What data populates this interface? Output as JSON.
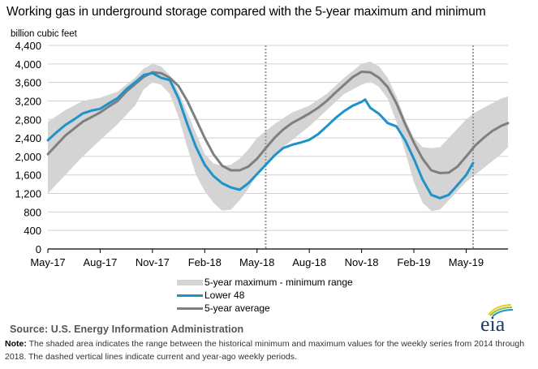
{
  "chart_data": {
    "type": "area",
    "title": "Working gas in underground storage compared with the 5-year maximum and minimum",
    "ylabel": "billion cubic feet",
    "xlabel": "",
    "ylim": [
      0,
      4400
    ],
    "yticks": [
      0,
      400,
      800,
      1200,
      1600,
      2000,
      2400,
      2800,
      3200,
      3600,
      4000,
      4400
    ],
    "ytick_labels": [
      "0",
      "400",
      "800",
      "1,200",
      "1,600",
      "2,000",
      "2,400",
      "2,800",
      "3,200",
      "3,600",
      "4,000",
      "4,400"
    ],
    "x_unit": "months since May-17",
    "xlim": [
      0,
      26.4
    ],
    "xticks": [
      0,
      3,
      6,
      9,
      12,
      15,
      18,
      21,
      24
    ],
    "xtick_labels": [
      "May-17",
      "Aug-17",
      "Nov-17",
      "Feb-18",
      "May-18",
      "Aug-18",
      "Nov-18",
      "Feb-19",
      "May-19"
    ],
    "grid": true,
    "dashed_vlines": [
      12.5,
      24.4
    ],
    "legend_position": "bottom",
    "series": [
      {
        "name": "5-year maximum - minimum range",
        "kind": "band",
        "color": "#d4d4d4",
        "x": [
          0,
          1,
          2,
          3,
          4,
          5,
          5.5,
          6,
          6.5,
          7,
          7.5,
          8,
          8.5,
          9,
          9.5,
          10,
          10.5,
          11,
          11.5,
          12,
          12.5,
          13,
          14,
          15,
          16,
          17,
          18,
          18.5,
          19,
          19.5,
          20,
          20.5,
          21,
          21.5,
          22,
          22.5,
          23,
          23.5,
          24,
          24.5,
          25,
          26,
          26.4
        ],
        "max": [
          2750,
          3000,
          3200,
          3270,
          3400,
          3700,
          3900,
          4000,
          3950,
          3750,
          3400,
          2950,
          2500,
          2050,
          1850,
          1800,
          1820,
          1950,
          2150,
          2400,
          2550,
          2700,
          2950,
          3100,
          3350,
          3700,
          4000,
          4050,
          3950,
          3700,
          3300,
          2800,
          2400,
          2200,
          2180,
          2200,
          2400,
          2600,
          2800,
          2950,
          3050,
          3250,
          3300
        ],
        "min": [
          1200,
          1600,
          2000,
          2350,
          2700,
          3100,
          3450,
          3600,
          3550,
          3350,
          2850,
          2200,
          1600,
          1250,
          1000,
          830,
          850,
          1050,
          1300,
          1600,
          1850,
          2050,
          2350,
          2650,
          3000,
          3350,
          3550,
          3620,
          3500,
          3250,
          2750,
          2100,
          1450,
          1000,
          820,
          850,
          1050,
          1250,
          1450,
          1600,
          1750,
          2050,
          2200
        ]
      },
      {
        "name": "Lower 48",
        "kind": "line",
        "color": "#1f92cc",
        "x": [
          0,
          0.5,
          1,
          1.5,
          2,
          2.5,
          3,
          3.5,
          4,
          4.5,
          5,
          5.5,
          6,
          6.5,
          7,
          7.5,
          8,
          8.5,
          9,
          9.5,
          10,
          10.5,
          11,
          11.5,
          12,
          12.5,
          13,
          13.5,
          14,
          14.5,
          15,
          15.5,
          16,
          16.5,
          17,
          17.5,
          18,
          18.2,
          18.5,
          19,
          19.5,
          20,
          20.5,
          21,
          21.5,
          22,
          22.5,
          23,
          23.5,
          24,
          24.4
        ],
        "values": [
          2350,
          2520,
          2680,
          2800,
          2930,
          2990,
          3030,
          3150,
          3260,
          3450,
          3600,
          3760,
          3800,
          3700,
          3650,
          3250,
          2700,
          2200,
          1820,
          1580,
          1420,
          1330,
          1280,
          1420,
          1620,
          1820,
          2020,
          2180,
          2250,
          2300,
          2360,
          2480,
          2650,
          2830,
          2980,
          3100,
          3180,
          3230,
          3050,
          2920,
          2720,
          2650,
          2350,
          1950,
          1500,
          1170,
          1100,
          1170,
          1380,
          1600,
          1860
        ]
      },
      {
        "name": "5-year average",
        "kind": "line",
        "color": "#7f7f7f",
        "x": [
          0,
          0.5,
          1,
          1.5,
          2,
          2.5,
          3,
          3.5,
          4,
          4.5,
          5,
          5.5,
          6,
          6.5,
          7,
          7.5,
          8,
          8.5,
          9,
          9.5,
          10,
          10.5,
          11,
          11.5,
          12,
          12.5,
          13,
          13.5,
          14,
          14.5,
          15,
          15.5,
          16,
          16.5,
          17,
          17.5,
          18,
          18.5,
          19,
          19.5,
          20,
          20.5,
          21,
          21.5,
          22,
          22.5,
          23,
          23.5,
          24,
          24.5,
          25,
          25.5,
          26,
          26.4
        ],
        "values": [
          2050,
          2250,
          2450,
          2600,
          2750,
          2850,
          2950,
          3080,
          3200,
          3400,
          3560,
          3720,
          3820,
          3800,
          3700,
          3520,
          3200,
          2800,
          2400,
          2050,
          1800,
          1700,
          1700,
          1780,
          1950,
          2180,
          2400,
          2580,
          2720,
          2820,
          2930,
          3050,
          3200,
          3380,
          3550,
          3720,
          3830,
          3820,
          3700,
          3500,
          3150,
          2700,
          2300,
          1950,
          1700,
          1640,
          1650,
          1780,
          2000,
          2230,
          2400,
          2550,
          2660,
          2720
        ]
      }
    ]
  },
  "legend": {
    "items": [
      "5-year maximum - minimum range",
      "Lower 48",
      "5-year average"
    ]
  },
  "footer": {
    "source": "Source:  U.S. Energy Information Administration",
    "note_label": "Note:",
    "note_text": " The shaded area indicates the range between the historical minimum and maximum values for the weekly series from 2014 through 2018. The dashed vertical lines indicate current and year-ago weekly periods.",
    "logo_text": "eia"
  }
}
